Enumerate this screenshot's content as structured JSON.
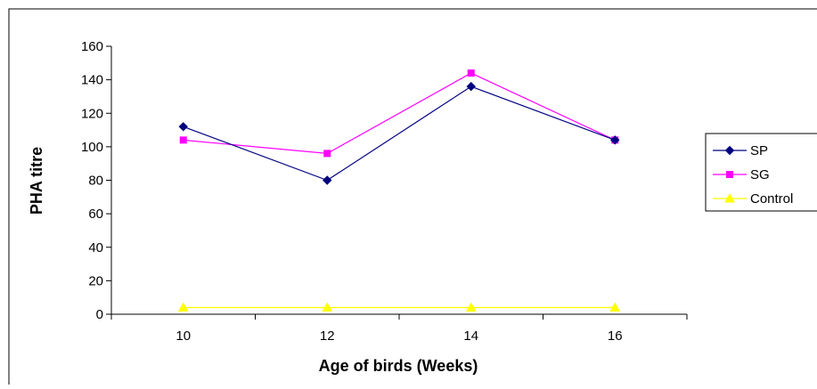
{
  "chart_data": {
    "type": "line",
    "title": "",
    "xlabel": "Age of birds (Weeks)",
    "ylabel": "PHA titre",
    "categories": [
      "10",
      "12",
      "14",
      "16"
    ],
    "ylim": [
      0,
      160
    ],
    "yticks": [
      0,
      20,
      40,
      60,
      80,
      100,
      120,
      140,
      160
    ],
    "grid": false,
    "legend_position": "right",
    "series": [
      {
        "name": "SP",
        "values": [
          112,
          80,
          136,
          104
        ],
        "color": "#000080",
        "marker": "diamond"
      },
      {
        "name": "SG",
        "values": [
          104,
          96,
          144,
          104
        ],
        "color": "#ff00ff",
        "marker": "square"
      },
      {
        "name": "Control",
        "values": [
          4,
          4,
          4,
          4
        ],
        "color": "#ffff00",
        "marker": "triangle"
      }
    ]
  }
}
